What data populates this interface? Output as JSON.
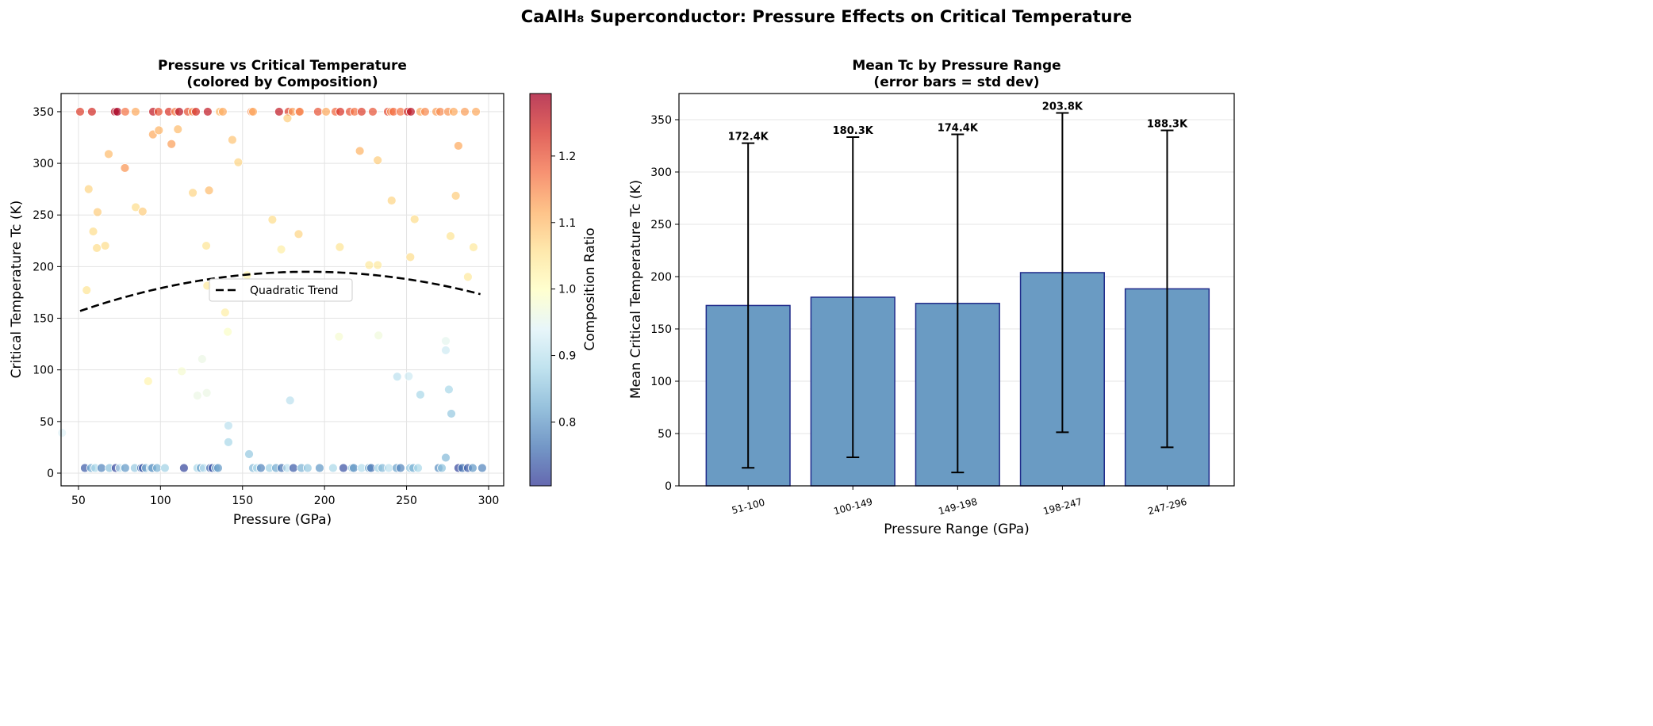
{
  "title": "CaAlH₈ Superconductor: Pressure Effects on Critical Temperature",
  "chart_data": [
    {
      "type": "scatter",
      "title_line1": "Pressure vs Critical Temperature",
      "title_line2": "(colored by Composition)",
      "xlabel": "Pressure (GPa)",
      "ylabel": "Critical Temperature Tc (K)",
      "xlim": [
        39.4,
        309.2
      ],
      "ylim": [
        -12.3,
        367.6
      ],
      "xticks": [
        50,
        100,
        150,
        200,
        250,
        300
      ],
      "yticks": [
        0,
        50,
        100,
        150,
        200,
        250,
        300,
        350
      ],
      "grid": true,
      "colormap": "RdYlBu_r",
      "colorbar": {
        "label": "Composition Ratio",
        "range": [
          0.704,
          1.294
        ],
        "ticks": [
          0.8,
          0.9,
          1.0,
          1.1,
          1.2
        ]
      },
      "legend": {
        "entries": [
          "Quadratic Trend"
        ],
        "placement": "center"
      },
      "trend": {
        "label": "Quadratic Trend",
        "coefficients": [
          -0.001967,
          0.7474,
          124.0
        ],
        "x_range": [
          51,
          296
        ],
        "color": "#000000"
      },
      "points_top": {
        "y": 350,
        "x": [
          51,
          58.2,
          72.2,
          73.7,
          78.5,
          84.8,
          95.5,
          98.8,
          105.1,
          109,
          111.4,
          116.7,
          119.6,
          121.6,
          128.8,
          136.1,
          138,
          155.4,
          156.4,
          172.3,
          178.1,
          180.5,
          184.4,
          184.9,
          196,
          200.9,
          206.7,
          209.6,
          215.4,
          218.3,
          222.6,
          229.4,
          238.6,
          240.5,
          242,
          246.3,
          250.7,
          252.6,
          258.4,
          261.3,
          268.1,
          270.5,
          275.3,
          278.7,
          285.5,
          292.3
        ],
        "c": [
          1.22,
          1.24,
          1.27,
          1.29,
          1.17,
          1.12,
          1.26,
          1.2,
          1.23,
          1.16,
          1.27,
          1.2,
          1.14,
          1.24,
          1.26,
          1.1,
          1.12,
          1.15,
          1.12,
          1.26,
          1.22,
          1.13,
          1.19,
          1.15,
          1.2,
          1.12,
          1.18,
          1.23,
          1.2,
          1.17,
          1.22,
          1.2,
          1.21,
          1.14,
          1.18,
          1.17,
          1.24,
          1.27,
          1.12,
          1.15,
          1.13,
          1.15,
          1.14,
          1.12,
          1.13,
          1.12
        ]
      },
      "points_mid": [
        [
          56.2,
          275,
          1.07
        ],
        [
          68.4,
          309,
          1.1
        ],
        [
          78.3,
          295.5,
          1.14
        ],
        [
          95.4,
          328,
          1.12
        ],
        [
          99,
          332,
          1.11
        ],
        [
          106.7,
          318.7,
          1.13
        ],
        [
          110.6,
          333,
          1.1
        ],
        [
          143.8,
          322.7,
          1.09
        ],
        [
          147.4,
          301,
          1.07
        ],
        [
          177.4,
          343.6,
          1.08
        ],
        [
          221.5,
          312,
          1.11
        ],
        [
          232.4,
          303,
          1.08
        ],
        [
          61.6,
          252.8,
          1.08
        ],
        [
          59,
          234,
          1.06
        ],
        [
          61.2,
          218,
          1.06
        ],
        [
          66.3,
          220.2,
          1.06
        ],
        [
          84.9,
          257.5,
          1.06
        ],
        [
          89.1,
          253.4,
          1.08
        ],
        [
          119.7,
          271.5,
          1.07
        ],
        [
          129.6,
          273.8,
          1.1
        ],
        [
          168.2,
          245.5,
          1.06
        ],
        [
          184.2,
          231.5,
          1.07
        ],
        [
          173.6,
          216.7,
          1.03
        ],
        [
          209.3,
          218.9,
          1.05
        ],
        [
          240.9,
          264,
          1.07
        ],
        [
          227.2,
          201.5,
          1.04
        ],
        [
          232.4,
          201.5,
          1.04
        ],
        [
          252.3,
          209.2,
          1.06
        ],
        [
          254.9,
          245.9,
          1.06
        ],
        [
          55,
          177.2,
          1.05
        ],
        [
          127.9,
          220.2,
          1.05
        ],
        [
          128.5,
          181.5,
          1.04
        ],
        [
          152.8,
          191.6,
          1.02
        ],
        [
          139.4,
          155.6,
          1.03
        ],
        [
          141,
          136.9,
          0.99
        ],
        [
          113,
          98.7,
          0.98
        ],
        [
          125.4,
          110.5,
          0.96
        ],
        [
          92.5,
          89,
          1.02
        ],
        [
          122.5,
          75.1,
          0.96
        ],
        [
          128.2,
          77.7,
          0.96
        ],
        [
          208.8,
          132.2,
          0.98
        ],
        [
          232.9,
          133.3,
          0.97
        ],
        [
          179,
          70.4,
          0.9
        ],
        [
          244.3,
          93.4,
          0.9
        ],
        [
          251.3,
          93.8,
          0.92
        ],
        [
          281.6,
          317,
          1.12
        ],
        [
          280,
          268.6,
          1.08
        ],
        [
          276.8,
          229.5,
          1.05
        ],
        [
          290.8,
          218.7,
          1.04
        ],
        [
          287.4,
          190,
          1.04
        ],
        [
          273.9,
          128,
          0.95
        ],
        [
          273.9,
          119,
          0.92
        ],
        [
          275.8,
          81,
          0.88
        ],
        [
          277.3,
          57.6,
          0.86
        ],
        [
          40,
          39,
          0.94
        ],
        [
          141.4,
          46,
          0.9
        ],
        [
          141.4,
          30,
          0.88
        ],
        [
          154,
          18.4,
          0.86
        ],
        [
          258.4,
          76,
          0.88
        ],
        [
          273.9,
          15,
          0.84
        ]
      ],
      "points_bottom": {
        "y": 5,
        "x": [
          53.9,
          57.7,
          60.2,
          64,
          68.9,
          72.7,
          75.1,
          78.5,
          84.3,
          88.2,
          89.2,
          91.1,
          94,
          95,
          97.9,
          102.7,
          114.3,
          122.5,
          124.5,
          126.4,
          130.3,
          131.7,
          133.7,
          135.1,
          156.4,
          158.8,
          161.2,
          166.5,
          170.4,
          173.8,
          177.2,
          181,
          185.9,
          189.7,
          197,
          205.2,
          211.5,
          216.8,
          217.8,
          222.6,
          227,
          228.4,
          232.8,
          235.2,
          239.1,
          243.9,
          246.3,
          252.1,
          254.1,
          257,
          269.5,
          271.5,
          281.6,
          284,
          287.4,
          290.3,
          296.1
        ],
        "c": [
          0.74,
          0.82,
          0.88,
          0.78,
          0.85,
          0.72,
          0.9,
          0.8,
          0.86,
          0.76,
          0.73,
          0.84,
          0.89,
          0.79,
          0.83,
          0.87,
          0.72,
          0.88,
          0.81,
          0.9,
          0.75,
          0.73,
          0.86,
          0.8,
          0.84,
          0.89,
          0.78,
          0.87,
          0.82,
          0.76,
          0.9,
          0.74,
          0.83,
          0.86,
          0.8,
          0.88,
          0.73,
          0.85,
          0.79,
          0.89,
          0.82,
          0.76,
          0.87,
          0.84,
          0.9,
          0.81,
          0.78,
          0.86,
          0.83,
          0.88,
          0.79,
          0.85,
          0.72,
          0.76,
          0.74,
          0.8,
          0.78
        ]
      }
    },
    {
      "type": "bar",
      "title_line1": "Mean Tc by Pressure Range",
      "title_line2": "(error bars = std dev)",
      "xlabel": "Pressure Range (GPa)",
      "ylabel": "Mean Critical Temperature Tc (K)",
      "categories": [
        "51-100",
        "100-149",
        "149-198",
        "198-247",
        "247-296"
      ],
      "values": [
        172.4,
        180.3,
        174.4,
        203.8,
        188.3
      ],
      "errors": [
        155.2,
        153.0,
        161.6,
        152.6,
        151.5
      ],
      "data_labels": [
        "172.4K",
        "180.3K",
        "174.4K",
        "203.8K",
        "188.3K"
      ],
      "ylim": [
        0,
        375
      ],
      "yticks": [
        0,
        50,
        100,
        150,
        200,
        250,
        300,
        350
      ],
      "grid": true,
      "bar_color": "#6a9bc3",
      "edge_color": "#1f2a8a"
    }
  ]
}
